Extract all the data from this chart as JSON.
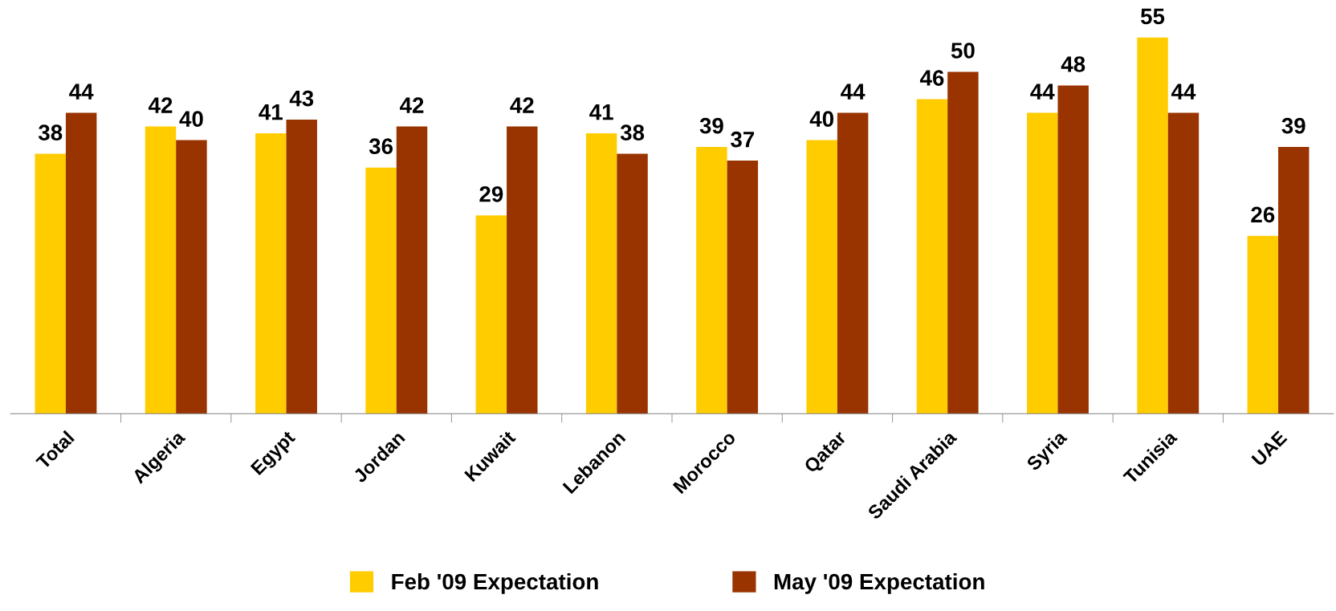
{
  "chart_data": {
    "type": "bar",
    "categories": [
      "Total",
      "Algeria",
      "Egypt",
      "Jordan",
      "Kuwait",
      "Lebanon",
      "Morocco",
      "Qatar",
      "Saudi Arabia",
      "Syria",
      "Tunisia",
      "UAE"
    ],
    "series": [
      {
        "name": "Feb '09 Expectation",
        "color": "#ffcc00",
        "values": [
          38,
          42,
          41,
          36,
          29,
          41,
          39,
          40,
          46,
          44,
          55,
          26
        ]
      },
      {
        "name": "May '09 Expectation",
        "color": "#993300",
        "values": [
          44,
          40,
          43,
          42,
          42,
          38,
          37,
          44,
          50,
          48,
          44,
          39
        ]
      }
    ],
    "data_labels": true,
    "legend": "bottom",
    "grid": false
  }
}
